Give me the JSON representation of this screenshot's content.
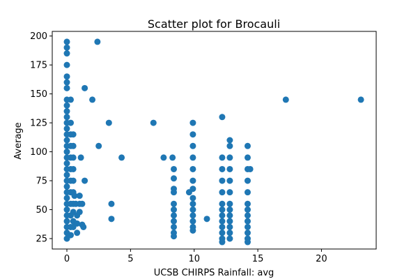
{
  "chart_data": {
    "type": "scatter",
    "title": "Scatter plot for Brocauli",
    "xlabel": "UCSB CHIRPS Rainfall: avg",
    "ylabel": "Average",
    "xlim": [
      -1.15,
      24.3
    ],
    "ylim": [
      16,
      204
    ],
    "xticks": [
      0,
      5,
      10,
      15,
      20
    ],
    "yticks": [
      25,
      50,
      75,
      100,
      125,
      150,
      175,
      200
    ],
    "grid": false,
    "legend": "none",
    "marker_color": "#1f77b4",
    "series": [
      {
        "points": [
          [
            0,
            195
          ],
          [
            0,
            190
          ],
          [
            0,
            185
          ],
          [
            0,
            175
          ],
          [
            0,
            165
          ],
          [
            0,
            160
          ],
          [
            0,
            155
          ],
          [
            0,
            145
          ],
          [
            0,
            140
          ],
          [
            0,
            135
          ],
          [
            0,
            130
          ],
          [
            0,
            125
          ],
          [
            0,
            120
          ],
          [
            0,
            115
          ],
          [
            0,
            110
          ],
          [
            0,
            105
          ],
          [
            0,
            100
          ],
          [
            0,
            95
          ],
          [
            0,
            90
          ],
          [
            0,
            85
          ],
          [
            0,
            80
          ],
          [
            0,
            75
          ],
          [
            0,
            70
          ],
          [
            0,
            65
          ],
          [
            0,
            60
          ],
          [
            0,
            55
          ],
          [
            0,
            50
          ],
          [
            0,
            45
          ],
          [
            0,
            40
          ],
          [
            0,
            35
          ],
          [
            0,
            30
          ],
          [
            0,
            25
          ],
          [
            0.3,
            145
          ],
          [
            0.3,
            125
          ],
          [
            0.3,
            115
          ],
          [
            0.3,
            105
          ],
          [
            0.3,
            95
          ],
          [
            0.3,
            85
          ],
          [
            0.3,
            75
          ],
          [
            0.3,
            65
          ],
          [
            0.3,
            55
          ],
          [
            0.3,
            45
          ],
          [
            0.3,
            35
          ],
          [
            0.3,
            28
          ],
          [
            0.5,
            115
          ],
          [
            0.5,
            105
          ],
          [
            0.5,
            95
          ],
          [
            0.5,
            85
          ],
          [
            0.5,
            75
          ],
          [
            0.5,
            65
          ],
          [
            0.5,
            55
          ],
          [
            0.5,
            48
          ],
          [
            0.5,
            40
          ],
          [
            0.5,
            35
          ],
          [
            0.6,
            62
          ],
          [
            0.7,
            55
          ],
          [
            0.8,
            45
          ],
          [
            0.8,
            38
          ],
          [
            0.8,
            30
          ],
          [
            1.0,
            62
          ],
          [
            1.0,
            55
          ],
          [
            1.0,
            48
          ],
          [
            1.1,
            95
          ],
          [
            1.2,
            55
          ],
          [
            1.2,
            37
          ],
          [
            1.3,
            35
          ],
          [
            1.4,
            75
          ],
          [
            1.4,
            155
          ],
          [
            2.0,
            145
          ],
          [
            2.4,
            195
          ],
          [
            2.5,
            105
          ],
          [
            3.3,
            125
          ],
          [
            3.5,
            55
          ],
          [
            3.5,
            42
          ],
          [
            4.3,
            95
          ],
          [
            6.8,
            125
          ],
          [
            7.6,
            95
          ],
          [
            8.3,
            95
          ],
          [
            8.4,
            85
          ],
          [
            8.4,
            77
          ],
          [
            8.4,
            68
          ],
          [
            8.4,
            65
          ],
          [
            8.4,
            55
          ],
          [
            8.4,
            50
          ],
          [
            8.4,
            45
          ],
          [
            8.4,
            40
          ],
          [
            8.4,
            35
          ],
          [
            8.4,
            30
          ],
          [
            8.4,
            27
          ],
          [
            9.6,
            65
          ],
          [
            9.9,
            125
          ],
          [
            9.9,
            115
          ],
          [
            9.9,
            105
          ],
          [
            9.9,
            95
          ],
          [
            9.9,
            85
          ],
          [
            9.9,
            75
          ],
          [
            9.9,
            68
          ],
          [
            9.9,
            60
          ],
          [
            9.9,
            55
          ],
          [
            9.9,
            50
          ],
          [
            9.9,
            45
          ],
          [
            9.9,
            40
          ],
          [
            9.9,
            35
          ],
          [
            9.9,
            32
          ],
          [
            11.0,
            42
          ],
          [
            12.2,
            130
          ],
          [
            12.2,
            95
          ],
          [
            12.2,
            85
          ],
          [
            12.2,
            75
          ],
          [
            12.2,
            65
          ],
          [
            12.2,
            55
          ],
          [
            12.2,
            50
          ],
          [
            12.2,
            45
          ],
          [
            12.2,
            40
          ],
          [
            12.2,
            35
          ],
          [
            12.2,
            30
          ],
          [
            12.2,
            25
          ],
          [
            12.2,
            22
          ],
          [
            12.8,
            110
          ],
          [
            12.8,
            105
          ],
          [
            12.8,
            95
          ],
          [
            12.8,
            85
          ],
          [
            12.8,
            75
          ],
          [
            12.8,
            65
          ],
          [
            12.8,
            55
          ],
          [
            12.8,
            50
          ],
          [
            12.8,
            45
          ],
          [
            12.8,
            40
          ],
          [
            12.8,
            35
          ],
          [
            12.8,
            30
          ],
          [
            12.8,
            25
          ],
          [
            14.2,
            105
          ],
          [
            14.2,
            95
          ],
          [
            14.2,
            85
          ],
          [
            14.2,
            75
          ],
          [
            14.2,
            65
          ],
          [
            14.2,
            55
          ],
          [
            14.2,
            50
          ],
          [
            14.2,
            45
          ],
          [
            14.2,
            40
          ],
          [
            14.2,
            35
          ],
          [
            14.2,
            30
          ],
          [
            14.2,
            25
          ],
          [
            14.2,
            22
          ],
          [
            14.4,
            85
          ],
          [
            17.2,
            145
          ],
          [
            23.1,
            145
          ]
        ]
      }
    ]
  }
}
